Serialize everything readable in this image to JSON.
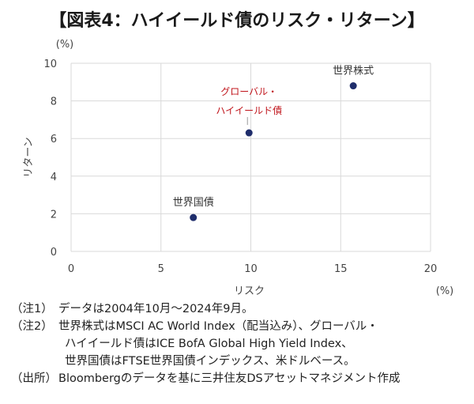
{
  "title": "【図表4：ハイイールド債のリスク・リターン】",
  "chart_data": {
    "type": "scatter",
    "xlabel": "リスク",
    "ylabel": "リターン",
    "x_unit": "(%)",
    "y_unit": "(%)",
    "xlim": [
      0,
      20
    ],
    "ylim": [
      0,
      10
    ],
    "x_ticks": [
      "0",
      "5",
      "10",
      "15",
      "20"
    ],
    "y_ticks": [
      "0",
      "2",
      "4",
      "6",
      "8",
      "10"
    ],
    "grid": true,
    "point_color": "#1f2d6b",
    "highlight_color": "#c0141b",
    "points": [
      {
        "label": "世界株式",
        "x": 15.7,
        "y": 8.8,
        "highlight": false
      },
      {
        "label": "グローバル・\nハイイールド債",
        "x": 9.9,
        "y": 6.3,
        "highlight": true
      },
      {
        "label": "世界国債",
        "x": 6.8,
        "y": 1.8,
        "highlight": false
      }
    ]
  },
  "notes": [
    {
      "tag": "（注1）",
      "lines": [
        "データは2004年10月～2024年9月。"
      ]
    },
    {
      "tag": "（注2）",
      "lines": [
        "世界株式はMSCI AC World Index（配当込み）、グローバル・",
        "ハイイールド債はICE BofA Global High Yield Index、",
        "世界国債はFTSE世界国債インデックス、米ドルベース。"
      ]
    },
    {
      "tag": "（出所）",
      "lines": [
        "Bloombergのデータを基に三井住友DSアセットマネジメント作成"
      ]
    }
  ]
}
